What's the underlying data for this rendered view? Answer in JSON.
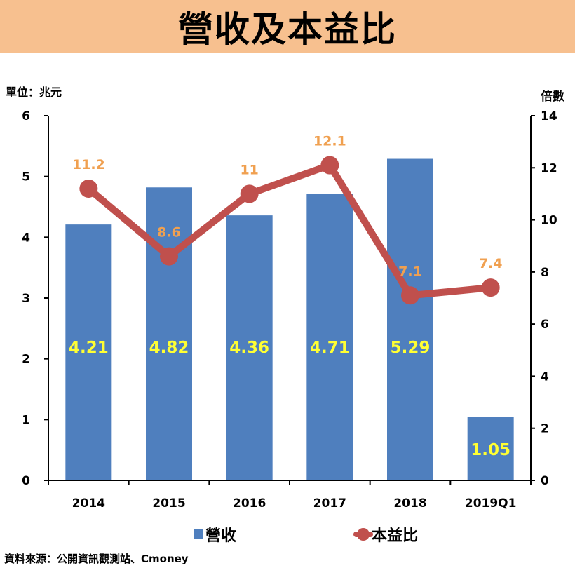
{
  "title": "營收及本益比",
  "source": "資料來源：公開資訊觀測站、Cmoney",
  "chart_data": {
    "type": "bar",
    "categories": [
      "2014",
      "2015",
      "2016",
      "2017",
      "2018",
      "2019Q1"
    ],
    "series": [
      {
        "name": "營收",
        "type": "bar",
        "axis": "left",
        "values": [
          4.21,
          4.82,
          4.36,
          4.71,
          5.29,
          1.05
        ],
        "labels": [
          "4.21",
          "4.82",
          "4.36",
          "4.71",
          "5.29",
          "1.05"
        ],
        "color": "#4f7fbe",
        "label_color": "#ffff33"
      },
      {
        "name": "本益比",
        "type": "line",
        "axis": "right",
        "values": [
          11.2,
          8.6,
          11,
          12.1,
          7.1,
          7.4
        ],
        "labels": [
          "11.2",
          "8.6",
          "11",
          "12.1",
          "7.1",
          "7.4"
        ],
        "color": "#c0504d",
        "label_color": "#f0a050"
      }
    ],
    "y_left": {
      "label": "單位：兆元",
      "ylim": [
        0,
        6
      ],
      "ticks": [
        "0",
        "1",
        "2",
        "3",
        "4",
        "5",
        "6"
      ]
    },
    "y_right": {
      "label": "倍數",
      "ylim": [
        0,
        14
      ],
      "ticks": [
        "0",
        "2",
        "4",
        "6",
        "8",
        "10",
        "12",
        "14"
      ]
    },
    "grid": false,
    "legend": "bottom"
  }
}
